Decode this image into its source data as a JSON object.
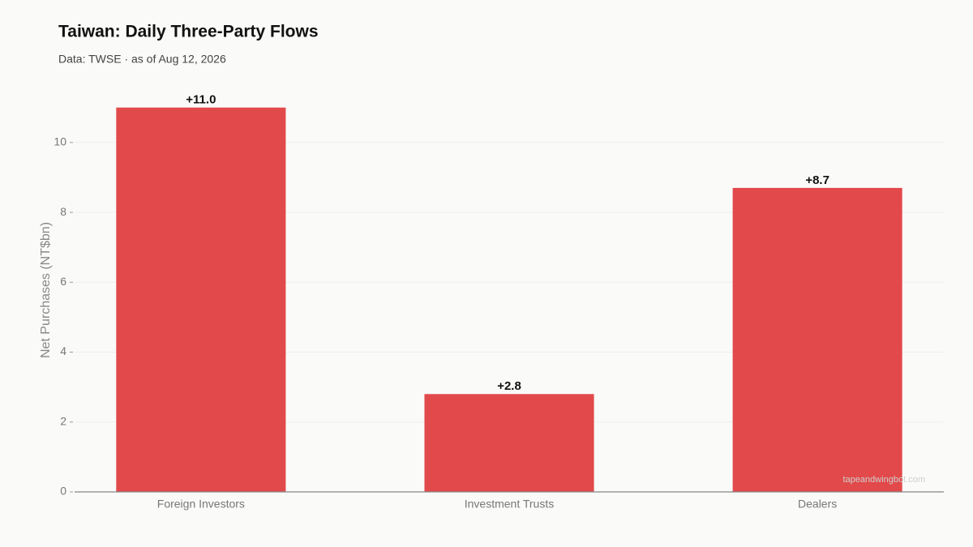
{
  "chart_data": {
    "type": "bar",
    "title": "Taiwan: Daily Three-Party Flows",
    "subtitle": "Data: TWSE · as of Aug 12, 2026",
    "y_label": "Net Purchases (NT$bn)",
    "categories": [
      "Foreign Investors",
      "Investment Trusts",
      "Dealers"
    ],
    "values": [
      11.0,
      2.8,
      8.7
    ],
    "value_labels": [
      "+11.0",
      "+2.8",
      "+8.7"
    ],
    "color": "#e2494a",
    "ylim": [
      0,
      11.55
    ],
    "yticks": [
      0,
      2,
      4,
      6,
      8,
      10
    ],
    "grid": true,
    "watermark": "tapeandwingbot.com"
  }
}
